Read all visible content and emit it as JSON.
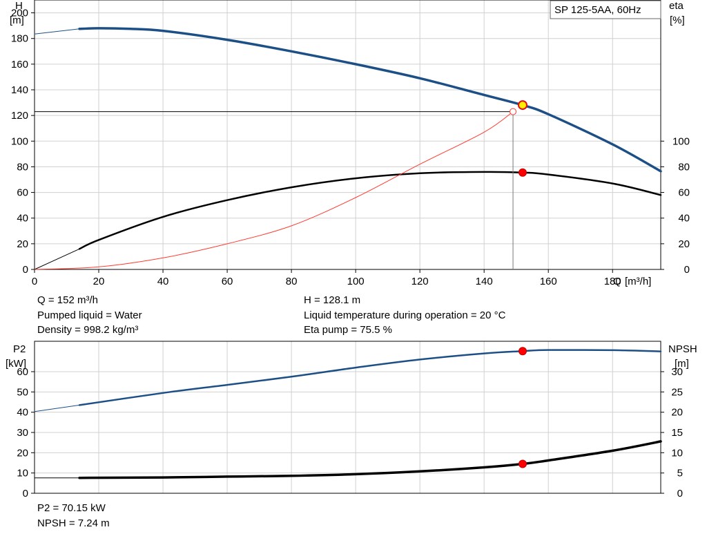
{
  "legend_box": {
    "label": "SP 125-5AA, 60Hz"
  },
  "info_top": {
    "q": "Q = 152 m³/h",
    "liquid": "Pumped liquid = Water",
    "density": "Density = 998.2 kg/m³",
    "h": "H = 128.1 m",
    "temperature": "Liquid temperature during operation = 20 °C",
    "eta": "Eta pump = 75.5 %"
  },
  "info_bottom": {
    "p2": "P2 = 70.15 kW",
    "npsh": "NPSH = 7.24 m"
  },
  "colors": {
    "head_curve": "#1c4f85",
    "eta_curve": "#000000",
    "system_curve": "#ff3b30",
    "duty_point_fill": "#ffee00",
    "duty_point_stroke": "#e01010",
    "marker": "#ff0000",
    "grid": "#d0d0d0"
  },
  "chart_data": [
    {
      "type": "line",
      "title": "",
      "xlabel": "Q [m³/h]",
      "ylabel": "H [m]",
      "y2label": "eta [%]",
      "xlim": [
        0,
        195
      ],
      "ylim": [
        0,
        210
      ],
      "y2lim": [
        0,
        210
      ],
      "x_ticks": [
        0,
        20,
        40,
        60,
        80,
        100,
        120,
        140,
        160,
        180
      ],
      "y_ticks": [
        0,
        20,
        40,
        60,
        80,
        100,
        120,
        140,
        160,
        180,
        200
      ],
      "y2_ticks": [
        0,
        20,
        40,
        60,
        80,
        100
      ],
      "grid": true,
      "y_unit": "[m]",
      "y2_unit": "[%]",
      "y_name": "H",
      "y2_name": "eta",
      "x_name": "Q",
      "x_unit": "[m³/h]",
      "series": [
        {
          "name": "SP 125-5AA, 60Hz",
          "role": "head",
          "axis": "left",
          "x": [
            14,
            20,
            30,
            40,
            60,
            80,
            100,
            120,
            140,
            152,
            160,
            180,
            195
          ],
          "values": [
            187.5,
            188,
            187.5,
            186,
            179,
            170,
            160,
            149,
            136,
            128.1,
            121,
            97.5,
            76.5
          ]
        },
        {
          "name": "",
          "role": "head-extrapolated",
          "axis": "left",
          "x": [
            0,
            14
          ],
          "values": [
            183.5,
            187.5
          ]
        },
        {
          "name": "",
          "role": "efficiency",
          "axis": "right",
          "x": [
            14,
            20,
            40,
            60,
            80,
            100,
            120,
            140,
            152,
            160,
            180,
            195
          ],
          "values": [
            16,
            23,
            41,
            54,
            64,
            71,
            75,
            76,
            75.5,
            74,
            67,
            58
          ]
        },
        {
          "name": "",
          "role": "efficiency-extrapolated",
          "axis": "right",
          "x": [
            0,
            14
          ],
          "values": [
            0,
            16
          ]
        },
        {
          "name": "",
          "role": "system-curve",
          "axis": "left",
          "x": [
            0,
            20,
            40,
            60,
            80,
            100,
            120,
            140,
            149
          ],
          "values": [
            0,
            2,
            9,
            20,
            34,
            56,
            82,
            107,
            123
          ]
        }
      ],
      "duty_point": {
        "x": 152,
        "y": 128.1
      },
      "eta_point": {
        "x": 152,
        "y": 75.5
      },
      "system_point": {
        "x": 149,
        "y": 123
      }
    },
    {
      "type": "line",
      "title": "",
      "ylabel": "P2 [kW]",
      "y2label": "NPSH [m]",
      "xlim": [
        0,
        195
      ],
      "ylim": [
        0,
        75
      ],
      "y2lim": [
        0,
        37.5
      ],
      "y_ticks": [
        0,
        10,
        20,
        30,
        40,
        50,
        60
      ],
      "y2_ticks": [
        0,
        5,
        10,
        15,
        20,
        25,
        30
      ],
      "grid": true,
      "y_name": "P2",
      "y_unit": "[kW]",
      "y2_name": "NPSH",
      "y2_unit": "[m]",
      "series": [
        {
          "name": "",
          "role": "power",
          "axis": "left",
          "x": [
            14,
            40,
            60,
            80,
            100,
            120,
            140,
            152,
            160,
            180,
            195
          ],
          "values": [
            43.5,
            49.5,
            53.5,
            57.5,
            62,
            66,
            69,
            70.15,
            70.7,
            70.6,
            70
          ]
        },
        {
          "name": "",
          "role": "power-extrapolated",
          "axis": "left",
          "x": [
            0,
            14
          ],
          "values": [
            40.3,
            43.5
          ]
        },
        {
          "name": "",
          "role": "npsh",
          "axis": "right",
          "x": [
            14,
            40,
            60,
            80,
            100,
            120,
            140,
            152,
            160,
            180,
            195
          ],
          "values": [
            3.8,
            3.9,
            4.1,
            4.3,
            4.7,
            5.4,
            6.4,
            7.24,
            8.1,
            10.5,
            12.8
          ]
        },
        {
          "name": "",
          "role": "npsh-extrapolated",
          "axis": "right",
          "x": [
            0,
            14
          ],
          "values": [
            3.8,
            3.8
          ]
        }
      ],
      "power_point": {
        "x": 152,
        "y": 70.15
      },
      "npsh_point": {
        "x": 152,
        "y": 7.24
      }
    }
  ]
}
